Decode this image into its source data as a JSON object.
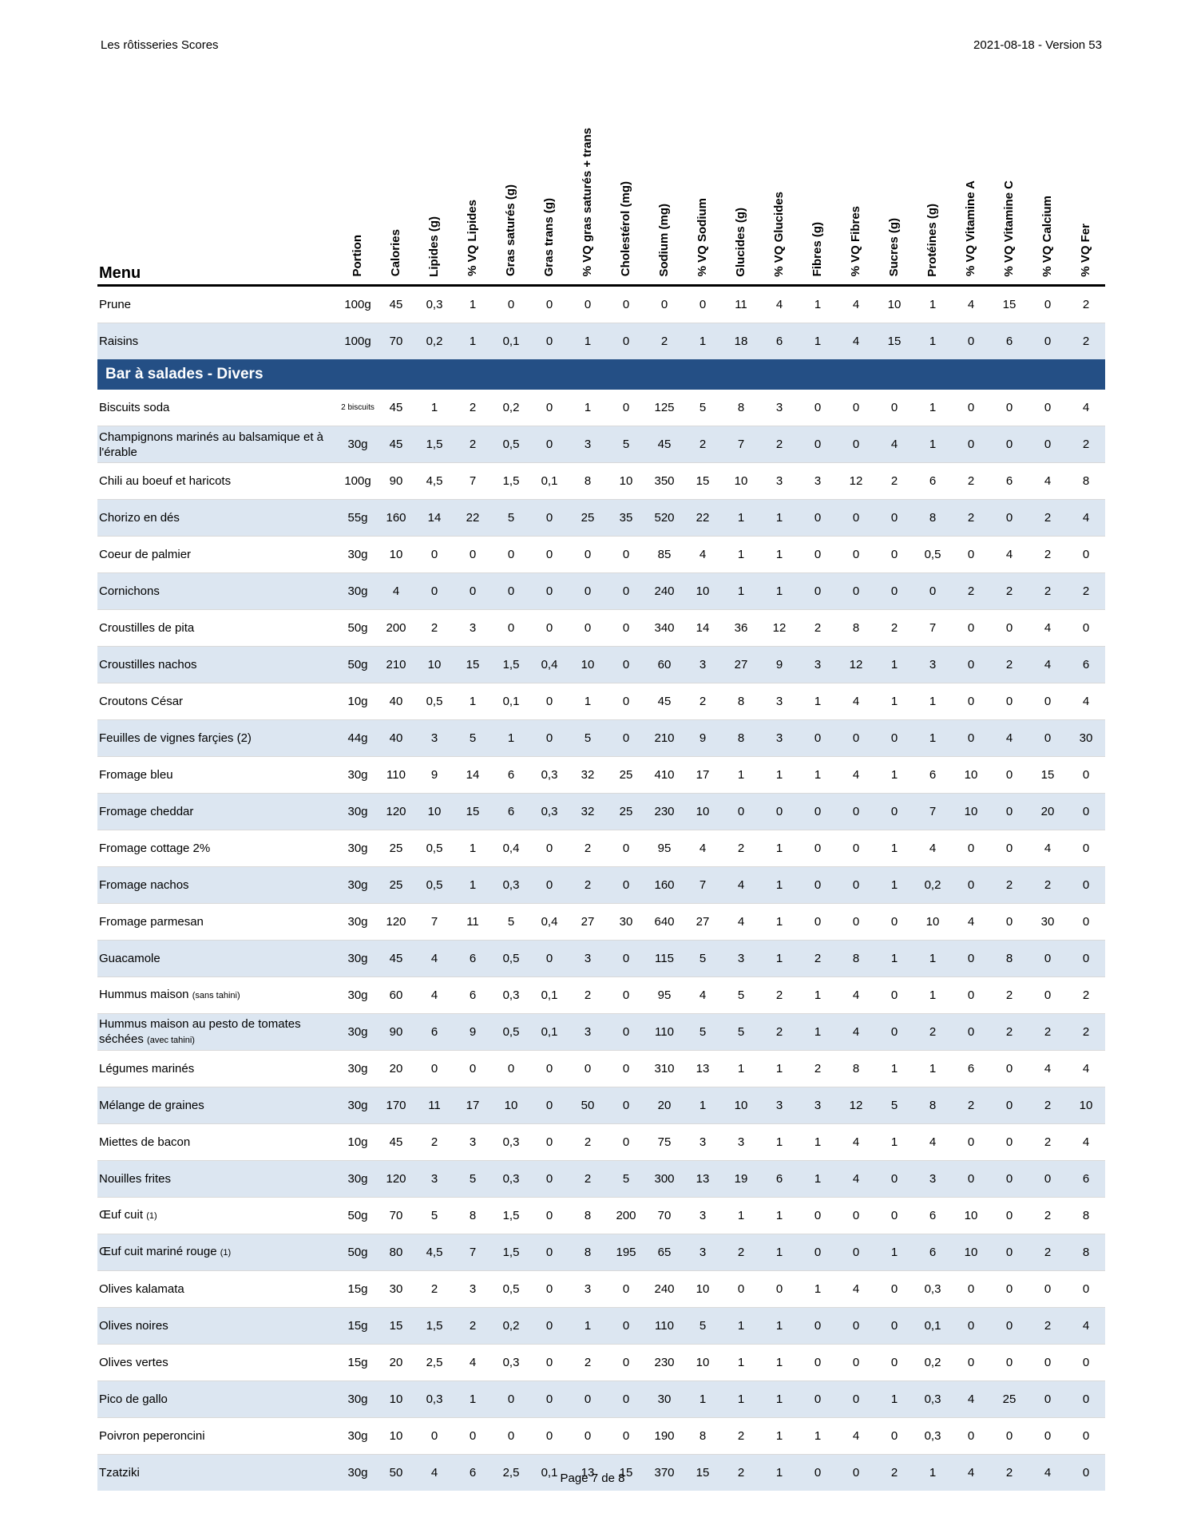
{
  "page": {
    "header_left": "Les rôtisseries Scores",
    "header_right": "2021-08-18 - Version 53",
    "footer": "Page 7 de 8"
  },
  "colors": {
    "section_bar": "#244F85",
    "row_stripe": "#DCE6F1",
    "header_rule": "#000000"
  },
  "table": {
    "menu_header": "Menu",
    "columns": [
      "Portion",
      "Calories",
      "Lipides (g)",
      "% VQ Lipides",
      "Gras saturés (g)",
      "Gras trans (g)",
      "% VQ gras saturés + trans",
      "Cholestérol (mg)",
      "Sodium (mg)",
      "% VQ Sodium",
      "Glucides (g)",
      "% VQ Glucides",
      "Fibres (g)",
      "% VQ Fibres",
      "Sucres (g)",
      "Protéines (g)",
      "% VQ Vitamine A",
      "% VQ Vitamine C",
      "% VQ Calcium",
      "% VQ Fer"
    ],
    "rows": [
      {
        "type": "item",
        "name": "Prune",
        "values": [
          "100g",
          "45",
          "0,3",
          "1",
          "0",
          "0",
          "0",
          "0",
          "0",
          "0",
          "11",
          "4",
          "1",
          "4",
          "10",
          "1",
          "4",
          "15",
          "0",
          "2"
        ]
      },
      {
        "type": "item",
        "name": "Raisins",
        "values": [
          "100g",
          "70",
          "0,2",
          "1",
          "0,1",
          "0",
          "1",
          "0",
          "2",
          "1",
          "18",
          "6",
          "1",
          "4",
          "15",
          "1",
          "0",
          "6",
          "0",
          "2"
        ]
      },
      {
        "type": "section",
        "name": "Bar à salades - Divers"
      },
      {
        "type": "item",
        "name": "Biscuits soda",
        "portion_small": true,
        "values": [
          "2 biscuits",
          "45",
          "1",
          "2",
          "0,2",
          "0",
          "1",
          "0",
          "125",
          "5",
          "8",
          "3",
          "0",
          "0",
          "0",
          "1",
          "0",
          "0",
          "0",
          "4"
        ]
      },
      {
        "type": "item",
        "name": "Champignons marinés au balsamique et à l'érable",
        "values": [
          "30g",
          "45",
          "1,5",
          "2",
          "0,5",
          "0",
          "3",
          "5",
          "45",
          "2",
          "7",
          "2",
          "0",
          "0",
          "4",
          "1",
          "0",
          "0",
          "0",
          "2"
        ]
      },
      {
        "type": "item",
        "name": "Chili au boeuf et haricots",
        "values": [
          "100g",
          "90",
          "4,5",
          "7",
          "1,5",
          "0,1",
          "8",
          "10",
          "350",
          "15",
          "10",
          "3",
          "3",
          "12",
          "2",
          "6",
          "2",
          "6",
          "4",
          "8"
        ]
      },
      {
        "type": "item",
        "name": "Chorizo en dés",
        "values": [
          "55g",
          "160",
          "14",
          "22",
          "5",
          "0",
          "25",
          "35",
          "520",
          "22",
          "1",
          "1",
          "0",
          "0",
          "0",
          "8",
          "2",
          "0",
          "2",
          "4"
        ]
      },
      {
        "type": "item",
        "name": "Coeur de palmier",
        "values": [
          "30g",
          "10",
          "0",
          "0",
          "0",
          "0",
          "0",
          "0",
          "85",
          "4",
          "1",
          "1",
          "0",
          "0",
          "0",
          "0,5",
          "0",
          "4",
          "2",
          "0"
        ]
      },
      {
        "type": "item",
        "name": "Cornichons",
        "values": [
          "30g",
          "4",
          "0",
          "0",
          "0",
          "0",
          "0",
          "0",
          "240",
          "10",
          "1",
          "1",
          "0",
          "0",
          "0",
          "0",
          "2",
          "2",
          "2",
          "2"
        ]
      },
      {
        "type": "item",
        "name": "Croustilles de pita",
        "values": [
          "50g",
          "200",
          "2",
          "3",
          "0",
          "0",
          "0",
          "0",
          "340",
          "14",
          "36",
          "12",
          "2",
          "8",
          "2",
          "7",
          "0",
          "0",
          "4",
          "0"
        ]
      },
      {
        "type": "item",
        "name": "Croustilles nachos",
        "values": [
          "50g",
          "210",
          "10",
          "15",
          "1,5",
          "0,4",
          "10",
          "0",
          "60",
          "3",
          "27",
          "9",
          "3",
          "12",
          "1",
          "3",
          "0",
          "2",
          "4",
          "6"
        ]
      },
      {
        "type": "item",
        "name": "Croutons César",
        "values": [
          "10g",
          "40",
          "0,5",
          "1",
          "0,1",
          "0",
          "1",
          "0",
          "45",
          "2",
          "8",
          "3",
          "1",
          "4",
          "1",
          "1",
          "0",
          "0",
          "0",
          "4"
        ]
      },
      {
        "type": "item",
        "name": "Feuilles de vignes farçies (2)",
        "values": [
          "44g",
          "40",
          "3",
          "5",
          "1",
          "0",
          "5",
          "0",
          "210",
          "9",
          "8",
          "3",
          "0",
          "0",
          "0",
          "1",
          "0",
          "4",
          "0",
          "30"
        ]
      },
      {
        "type": "item",
        "name": "Fromage bleu",
        "values": [
          "30g",
          "110",
          "9",
          "14",
          "6",
          "0,3",
          "32",
          "25",
          "410",
          "17",
          "1",
          "1",
          "1",
          "4",
          "1",
          "6",
          "10",
          "0",
          "15",
          "0"
        ]
      },
      {
        "type": "item",
        "name": "Fromage cheddar",
        "values": [
          "30g",
          "120",
          "10",
          "15",
          "6",
          "0,3",
          "32",
          "25",
          "230",
          "10",
          "0",
          "0",
          "0",
          "0",
          "0",
          "7",
          "10",
          "0",
          "20",
          "0"
        ]
      },
      {
        "type": "item",
        "name": "Fromage cottage 2%",
        "values": [
          "30g",
          "25",
          "0,5",
          "1",
          "0,4",
          "0",
          "2",
          "0",
          "95",
          "4",
          "2",
          "1",
          "0",
          "0",
          "1",
          "4",
          "0",
          "0",
          "4",
          "0"
        ]
      },
      {
        "type": "item",
        "name": "Fromage nachos",
        "values": [
          "30g",
          "25",
          "0,5",
          "1",
          "0,3",
          "0",
          "2",
          "0",
          "160",
          "7",
          "4",
          "1",
          "0",
          "0",
          "1",
          "0,2",
          "0",
          "2",
          "2",
          "0"
        ]
      },
      {
        "type": "item",
        "name": "Fromage parmesan",
        "values": [
          "30g",
          "120",
          "7",
          "11",
          "5",
          "0,4",
          "27",
          "30",
          "640",
          "27",
          "4",
          "1",
          "0",
          "0",
          "0",
          "10",
          "4",
          "0",
          "30",
          "0"
        ]
      },
      {
        "type": "item",
        "name": "Guacamole",
        "values": [
          "30g",
          "45",
          "4",
          "6",
          "0,5",
          "0",
          "3",
          "0",
          "115",
          "5",
          "3",
          "1",
          "2",
          "8",
          "1",
          "1",
          "0",
          "8",
          "0",
          "0"
        ]
      },
      {
        "type": "item",
        "name": "Hummus maison",
        "note": "(sans tahini)",
        "values": [
          "30g",
          "60",
          "4",
          "6",
          "0,3",
          "0,1",
          "2",
          "0",
          "95",
          "4",
          "5",
          "2",
          "1",
          "4",
          "0",
          "1",
          "0",
          "2",
          "0",
          "2"
        ]
      },
      {
        "type": "item",
        "name": "Hummus maison au pesto de tomates séchées",
        "note": "(avec tahini)",
        "values": [
          "30g",
          "90",
          "6",
          "9",
          "0,5",
          "0,1",
          "3",
          "0",
          "110",
          "5",
          "5",
          "2",
          "1",
          "4",
          "0",
          "2",
          "0",
          "2",
          "2",
          "2"
        ]
      },
      {
        "type": "item",
        "name": "Légumes marinés",
        "values": [
          "30g",
          "20",
          "0",
          "0",
          "0",
          "0",
          "0",
          "0",
          "310",
          "13",
          "1",
          "1",
          "2",
          "8",
          "1",
          "1",
          "6",
          "0",
          "4",
          "4"
        ]
      },
      {
        "type": "item",
        "name": "Mélange de graines",
        "values": [
          "30g",
          "170",
          "11",
          "17",
          "10",
          "0",
          "50",
          "0",
          "20",
          "1",
          "10",
          "3",
          "3",
          "12",
          "5",
          "8",
          "2",
          "0",
          "2",
          "10"
        ]
      },
      {
        "type": "item",
        "name": "Miettes de bacon",
        "values": [
          "10g",
          "45",
          "2",
          "3",
          "0,3",
          "0",
          "2",
          "0",
          "75",
          "3",
          "3",
          "1",
          "1",
          "4",
          "1",
          "4",
          "0",
          "0",
          "2",
          "4"
        ]
      },
      {
        "type": "item",
        "name": "Nouilles frites",
        "values": [
          "30g",
          "120",
          "3",
          "5",
          "0,3",
          "0",
          "2",
          "5",
          "300",
          "13",
          "19",
          "6",
          "1",
          "4",
          "0",
          "3",
          "0",
          "0",
          "0",
          "6"
        ]
      },
      {
        "type": "item",
        "name": "Œuf cuit",
        "note": "(1)",
        "values": [
          "50g",
          "70",
          "5",
          "8",
          "1,5",
          "0",
          "8",
          "200",
          "70",
          "3",
          "1",
          "1",
          "0",
          "0",
          "0",
          "6",
          "10",
          "0",
          "2",
          "8"
        ]
      },
      {
        "type": "item",
        "name": "Œuf cuit mariné rouge",
        "note": "(1)",
        "values": [
          "50g",
          "80",
          "4,5",
          "7",
          "1,5",
          "0",
          "8",
          "195",
          "65",
          "3",
          "2",
          "1",
          "0",
          "0",
          "1",
          "6",
          "10",
          "0",
          "2",
          "8"
        ]
      },
      {
        "type": "item",
        "name": "Olives kalamata",
        "values": [
          "15g",
          "30",
          "2",
          "3",
          "0,5",
          "0",
          "3",
          "0",
          "240",
          "10",
          "0",
          "0",
          "1",
          "4",
          "0",
          "0,3",
          "0",
          "0",
          "0",
          "0"
        ]
      },
      {
        "type": "item",
        "name": "Olives noires",
        "values": [
          "15g",
          "15",
          "1,5",
          "2",
          "0,2",
          "0",
          "1",
          "0",
          "110",
          "5",
          "1",
          "1",
          "0",
          "0",
          "0",
          "0,1",
          "0",
          "0",
          "2",
          "4"
        ]
      },
      {
        "type": "item",
        "name": "Olives vertes",
        "values": [
          "15g",
          "20",
          "2,5",
          "4",
          "0,3",
          "0",
          "2",
          "0",
          "230",
          "10",
          "1",
          "1",
          "0",
          "0",
          "0",
          "0,2",
          "0",
          "0",
          "0",
          "0"
        ]
      },
      {
        "type": "item",
        "name": "Pico de gallo",
        "values": [
          "30g",
          "10",
          "0,3",
          "1",
          "0",
          "0",
          "0",
          "0",
          "30",
          "1",
          "1",
          "1",
          "0",
          "0",
          "1",
          "0,3",
          "4",
          "25",
          "0",
          "0"
        ]
      },
      {
        "type": "item",
        "name": "Poivron peperoncini",
        "values": [
          "30g",
          "10",
          "0",
          "0",
          "0",
          "0",
          "0",
          "0",
          "190",
          "8",
          "2",
          "1",
          "1",
          "4",
          "0",
          "0,3",
          "0",
          "0",
          "0",
          "0"
        ]
      },
      {
        "type": "item",
        "name": "Tzatziki",
        "values": [
          "30g",
          "50",
          "4",
          "6",
          "2,5",
          "0,1",
          "13",
          "15",
          "370",
          "15",
          "2",
          "1",
          "0",
          "0",
          "2",
          "1",
          "4",
          "2",
          "4",
          "0"
        ]
      }
    ]
  }
}
